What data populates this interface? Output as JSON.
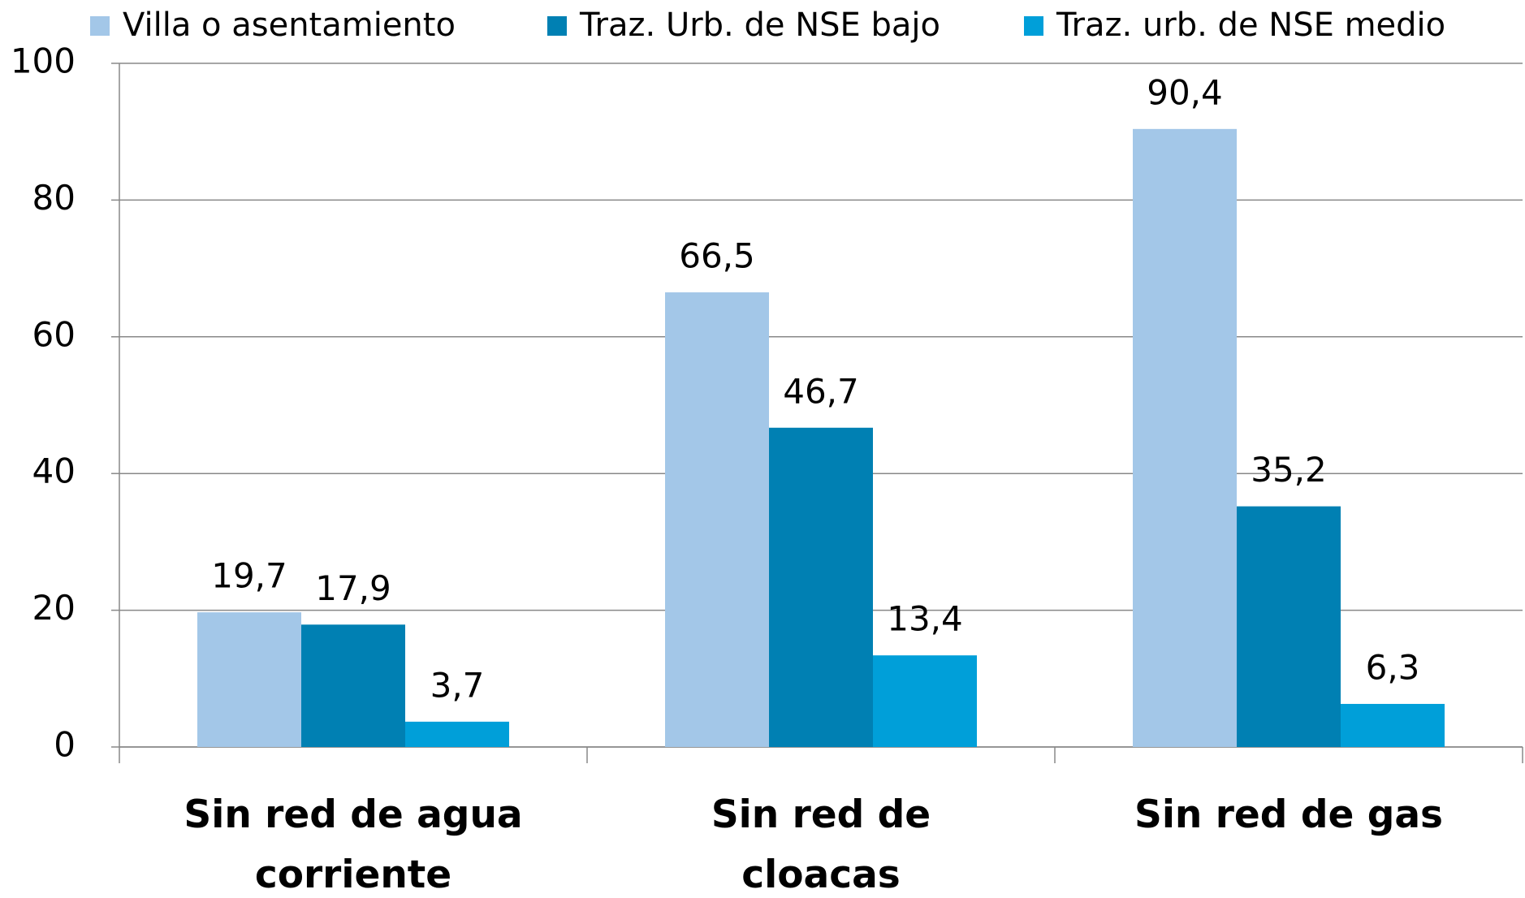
{
  "chart_data": {
    "type": "bar",
    "categories": [
      "Sin red de agua corriente",
      "Sin red de cloacas",
      "Sin red de gas"
    ],
    "series": [
      {
        "name": "Villa o asentamiento",
        "color": "#a3c7e8",
        "values": [
          19.7,
          66.5,
          90.4
        ],
        "value_labels": [
          "19,7",
          "66,5",
          "90,4"
        ]
      },
      {
        "name": "Traz. Urb. de NSE bajo",
        "color": "#0080b3",
        "values": [
          17.9,
          46.7,
          35.2
        ],
        "value_labels": [
          "17,9",
          "46,7",
          "35,2"
        ]
      },
      {
        "name": "Traz. urb. de NSE medio",
        "color": "#009fd9",
        "values": [
          3.7,
          13.4,
          6.3
        ],
        "value_labels": [
          "3,7",
          "13,4",
          "6,3"
        ]
      }
    ],
    "ylim": [
      0,
      100
    ],
    "yticks": [
      0,
      20,
      40,
      60,
      80,
      100
    ],
    "grid": true,
    "legend": "top"
  }
}
